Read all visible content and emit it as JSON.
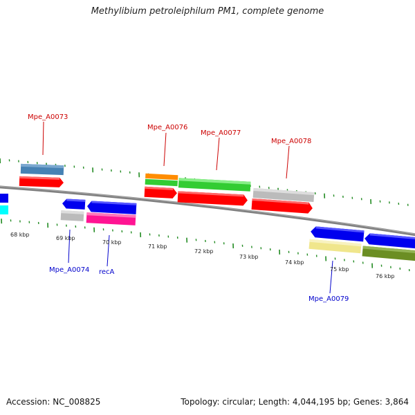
{
  "title": "Methylibium petroleiphilum PM1, complete genome",
  "footer": {
    "accession": "Accession: NC_008825",
    "summary": "Topology: circular; Length: 4,044,195 bp; Genes: 3,864"
  },
  "colors": {
    "strand_red": "#ff0000",
    "strand_blue": "#0000ee",
    "pseudo_gray": "#bbbbbb",
    "steel_blue": "#4682b4",
    "magenta": "#ff1493",
    "green": "#33cc33",
    "orange": "#ff8c00",
    "khaki": "#f0e68c",
    "olive": "#6b8e23",
    "cyan": "#00ffff",
    "tick_green": "#228b22",
    "backbone": "#808080"
  },
  "scale_labels": [
    "68 kbp",
    "69 kbp",
    "70 kbp",
    "71 kbp",
    "72 kbp",
    "73 kbp",
    "74 kbp",
    "75 kbp",
    "76 kbp"
  ],
  "gene_labels_top": [
    "Mpe_A0073",
    "Mpe_A0076",
    "Mpe_A0077",
    "Mpe_A0078"
  ],
  "gene_labels_bottom": [
    "Mpe_A0074",
    "recA",
    "Mpe_A0079"
  ]
}
